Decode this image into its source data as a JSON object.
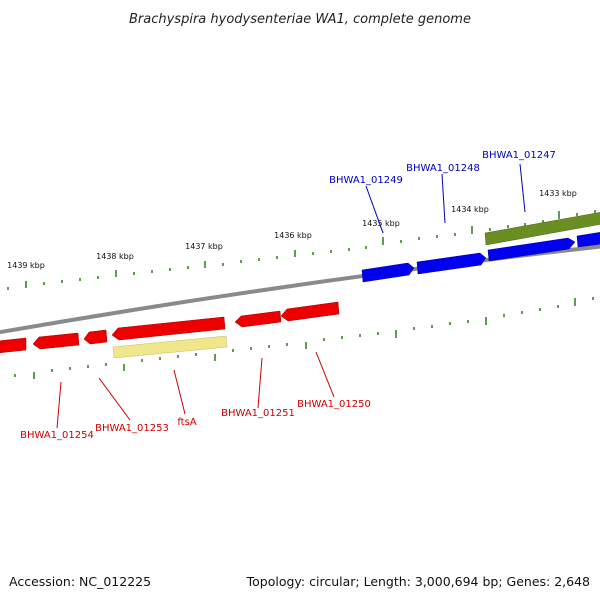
{
  "title": "Brachyspira hyodysenteriae WA1, complete genome",
  "footer": {
    "accession": "Accession: NC_012225",
    "stats": "Topology: circular; Length: 3,000,694 bp; Genes: 2,648"
  },
  "colors": {
    "backbone": "#8a8a8a",
    "tick": "#2a7a1a",
    "forward_gene": "#0000ee",
    "reverse_gene": "#ee0000",
    "rrna_like": "#6b8e23",
    "ftsA_feature": "#f0e68c",
    "forward_label": "#0000bb",
    "reverse_label": "#cc0000"
  },
  "kbp_ticks": [
    {
      "text": "1433 kbp"
    },
    {
      "text": "1434 kbp"
    },
    {
      "text": "1435 kbp"
    },
    {
      "text": "1436 kbp"
    },
    {
      "text": "1437 kbp"
    },
    {
      "text": "1438 kbp"
    },
    {
      "text": "1439 kbp"
    }
  ],
  "gene_labels": [
    {
      "text": "BHWA1_01247",
      "strand": "forward"
    },
    {
      "text": "BHWA1_01248",
      "strand": "forward"
    },
    {
      "text": "BHWA1_01249",
      "strand": "forward"
    },
    {
      "text": "BHWA1_01250",
      "strand": "reverse"
    },
    {
      "text": "BHWA1_01251",
      "strand": "reverse"
    },
    {
      "text": "ftsA",
      "strand": "reverse"
    },
    {
      "text": "BHWA1_01253",
      "strand": "reverse"
    },
    {
      "text": "BHWA1_01254",
      "strand": "reverse"
    }
  ]
}
